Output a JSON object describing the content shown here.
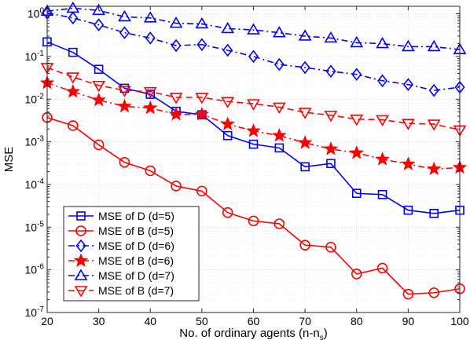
{
  "chart_data": {
    "type": "line",
    "xlabel": "No. of ordinary agents (n-n",
    "xlabel_sub": "s",
    "xlabel_close": ")",
    "ylabel": "MSE",
    "x": [
      20,
      25,
      30,
      35,
      40,
      45,
      50,
      55,
      60,
      65,
      70,
      75,
      80,
      85,
      90,
      95,
      100
    ],
    "xlim": [
      20,
      100
    ],
    "ylim": [
      1e-07,
      1.5
    ],
    "yscale": "log",
    "grid": true,
    "legend_position": "bottom-left",
    "xticks": [
      "20",
      "30",
      "40",
      "50",
      "60",
      "70",
      "80",
      "90",
      "100"
    ],
    "yticks": [
      {
        "base": "10",
        "exp": "0"
      },
      {
        "base": "10",
        "exp": "-1"
      },
      {
        "base": "10",
        "exp": "-2"
      },
      {
        "base": "10",
        "exp": "-3"
      },
      {
        "base": "10",
        "exp": "-4"
      },
      {
        "base": "10",
        "exp": "-5"
      },
      {
        "base": "10",
        "exp": "-6"
      },
      {
        "base": "10",
        "exp": "-7"
      }
    ],
    "series": [
      {
        "name": "MSE of D (d=5)",
        "color": "#0000ff",
        "marker": "square",
        "dash": "solid",
        "values": [
          0.22,
          0.125,
          0.05,
          0.018,
          0.013,
          0.0052,
          0.0043,
          0.0014,
          0.00088,
          0.00072,
          0.00026,
          0.00031,
          6.2e-05,
          5.8e-05,
          2.5e-05,
          2.1e-05,
          2.5e-05
        ]
      },
      {
        "name": "MSE of B (d=5)",
        "color": "#ff0000",
        "marker": "circle",
        "dash": "solid",
        "values": [
          0.0037,
          0.0024,
          0.00085,
          0.00033,
          0.00021,
          9.2e-05,
          7e-05,
          2.2e-05,
          1.4e-05,
          1.2e-05,
          3.8e-06,
          3.4e-06,
          8e-07,
          1.1e-06,
          2.7e-07,
          2.9e-07,
          3.6e-07
        ]
      },
      {
        "name": "MSE of D (d=6)",
        "color": "#0000ff",
        "marker": "diamond",
        "dash": "dashdot",
        "values": [
          1.05,
          0.8,
          0.55,
          0.36,
          0.27,
          0.18,
          0.19,
          0.14,
          0.1,
          0.065,
          0.055,
          0.045,
          0.038,
          0.027,
          0.022,
          0.016,
          0.019
        ]
      },
      {
        "name": "MSE of B (d=6)",
        "color": "#ff0000",
        "marker": "star",
        "dash": "dashdot",
        "values": [
          0.024,
          0.015,
          0.0095,
          0.0068,
          0.0062,
          0.0044,
          0.0044,
          0.0026,
          0.0018,
          0.0014,
          0.00095,
          0.00068,
          0.00055,
          0.00039,
          0.0003,
          0.00023,
          0.00025
        ]
      },
      {
        "name": "MSE of D (d=7)",
        "color": "#0000ff",
        "marker": "triangle-up",
        "dash": "dashdot",
        "values": [
          1.15,
          1.35,
          1.2,
          0.85,
          0.8,
          0.6,
          0.58,
          0.45,
          0.42,
          0.36,
          0.3,
          0.27,
          0.21,
          0.2,
          0.17,
          0.17,
          0.145
        ]
      },
      {
        "name": "MSE of B (d=7)",
        "color": "#ff0000",
        "marker": "triangle-down",
        "dash": "dashed",
        "values": [
          0.055,
          0.033,
          0.021,
          0.016,
          0.015,
          0.011,
          0.011,
          0.0088,
          0.0078,
          0.0065,
          0.0049,
          0.0042,
          0.0034,
          0.0033,
          0.0027,
          0.0026,
          0.0019
        ]
      }
    ]
  }
}
